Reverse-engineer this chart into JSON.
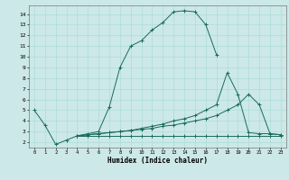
{
  "xlabel": "Humidex (Indice chaleur)",
  "bg_color": "#cce8e8",
  "line_color": "#1a6b5a",
  "xlim": [
    -0.5,
    23.5
  ],
  "ylim": [
    1.5,
    14.8
  ],
  "xticks": [
    0,
    1,
    2,
    3,
    4,
    5,
    6,
    7,
    8,
    9,
    10,
    11,
    12,
    13,
    14,
    15,
    16,
    17,
    18,
    19,
    20,
    21,
    22,
    23
  ],
  "yticks": [
    2,
    3,
    4,
    5,
    6,
    7,
    8,
    9,
    10,
    11,
    12,
    13,
    14
  ],
  "lines": [
    {
      "x": [
        0,
        1,
        2,
        3,
        4,
        5,
        6,
        7,
        8,
        9,
        10,
        11,
        12,
        13,
        14,
        15,
        16,
        17
      ],
      "y": [
        5.0,
        3.6,
        1.8,
        2.2,
        2.6,
        2.8,
        3.0,
        5.3,
        9.0,
        11.0,
        11.5,
        12.5,
        13.2,
        14.2,
        14.3,
        14.2,
        13.0,
        10.2
      ]
    },
    {
      "x": [
        4,
        5,
        6,
        7,
        8,
        9,
        10,
        11,
        12,
        13,
        14,
        15,
        16,
        17,
        18,
        19,
        20,
        21,
        22,
        23
      ],
      "y": [
        2.6,
        2.7,
        2.8,
        2.9,
        3.0,
        3.1,
        3.3,
        3.5,
        3.7,
        4.0,
        4.2,
        4.5,
        5.0,
        5.5,
        8.5,
        6.5,
        2.9,
        2.8,
        2.8,
        2.7
      ]
    },
    {
      "x": [
        4,
        5,
        6,
        7,
        8,
        9,
        10,
        11,
        12,
        13,
        14,
        15,
        16,
        17,
        18,
        19,
        20,
        21,
        22,
        23
      ],
      "y": [
        2.6,
        2.7,
        2.8,
        2.9,
        3.0,
        3.1,
        3.2,
        3.3,
        3.5,
        3.6,
        3.8,
        4.0,
        4.2,
        4.5,
        5.0,
        5.5,
        6.5,
        5.5,
        2.8,
        2.7
      ]
    },
    {
      "x": [
        4,
        5,
        6,
        7,
        8,
        9,
        10,
        11,
        12,
        13,
        14,
        15,
        16,
        17,
        18,
        19,
        20,
        21,
        22,
        23
      ],
      "y": [
        2.6,
        2.6,
        2.6,
        2.6,
        2.6,
        2.6,
        2.6,
        2.6,
        2.6,
        2.6,
        2.6,
        2.6,
        2.6,
        2.6,
        2.6,
        2.6,
        2.6,
        2.6,
        2.6,
        2.6
      ]
    }
  ]
}
